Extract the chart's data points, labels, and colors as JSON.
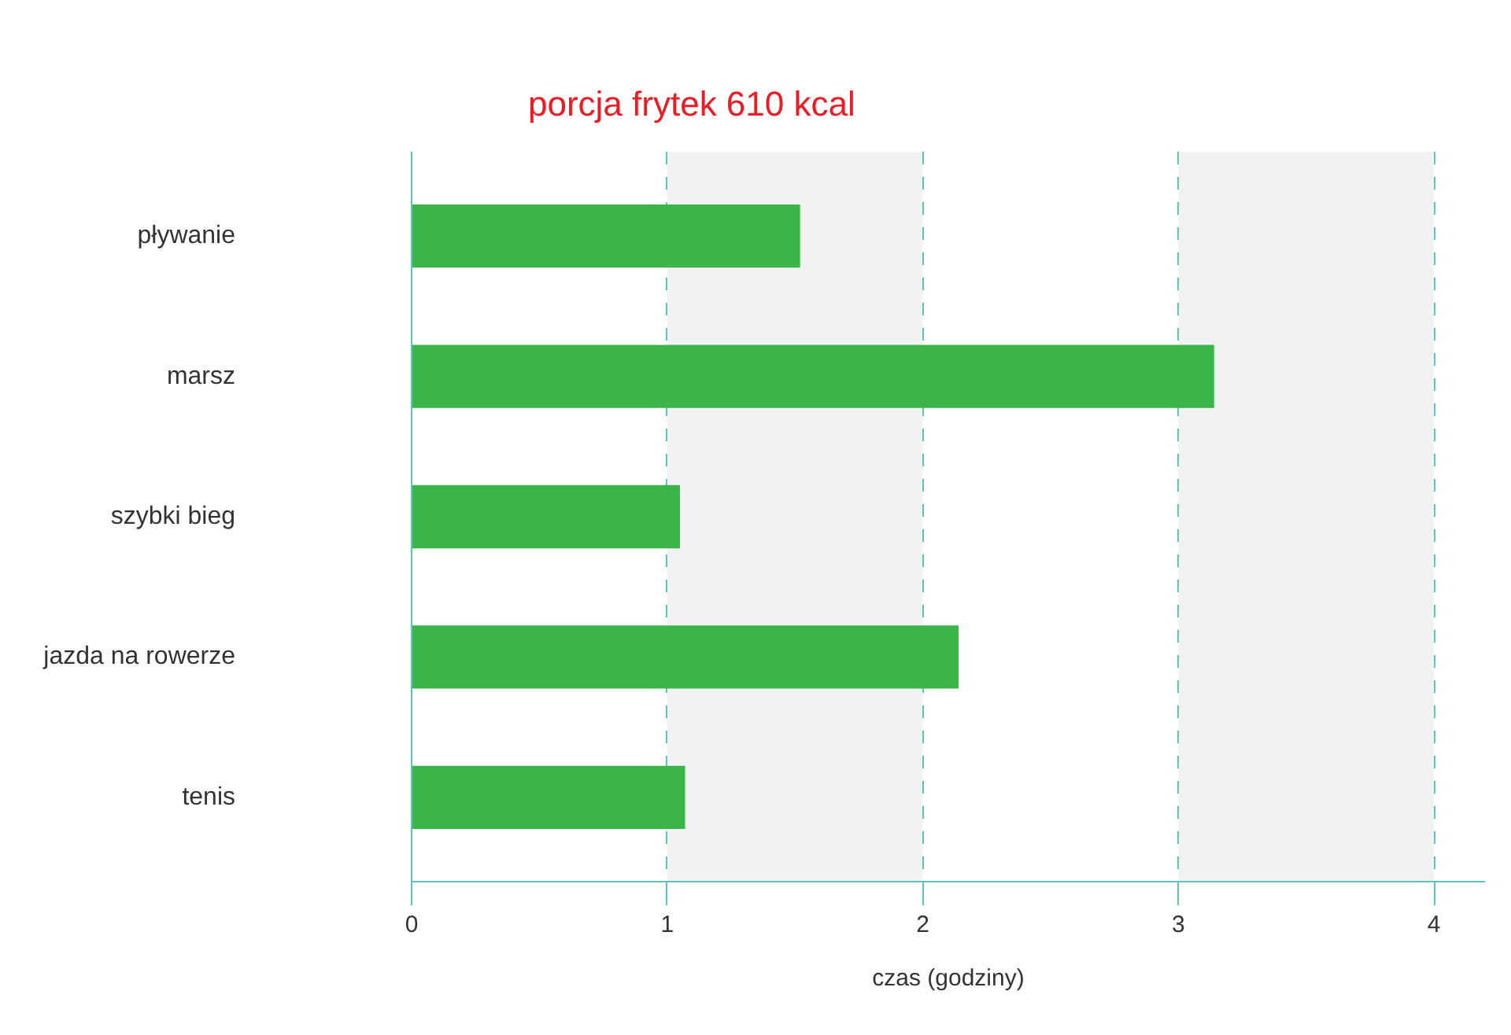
{
  "chart_data": {
    "type": "bar",
    "orientation": "horizontal",
    "title": "porcja frytek 610 kcal",
    "xlabel": "czas (godziny)",
    "categories": [
      "pływanie",
      "marsz",
      "szybki bieg",
      "jazda na rowerze",
      "tenis"
    ],
    "values": [
      1.52,
      3.14,
      1.05,
      2.14,
      1.07
    ],
    "color": "#3bb44a",
    "xlim": [
      0,
      4.2
    ],
    "xticks": [
      0,
      1,
      2,
      3,
      4
    ],
    "grid": "x",
    "bands": [
      {
        "axis": "x",
        "from": 1,
        "to": 2,
        "color": "#f2f2f2"
      },
      {
        "axis": "x",
        "from": 3,
        "to": 4,
        "color": "#f2f2f2"
      }
    ]
  }
}
